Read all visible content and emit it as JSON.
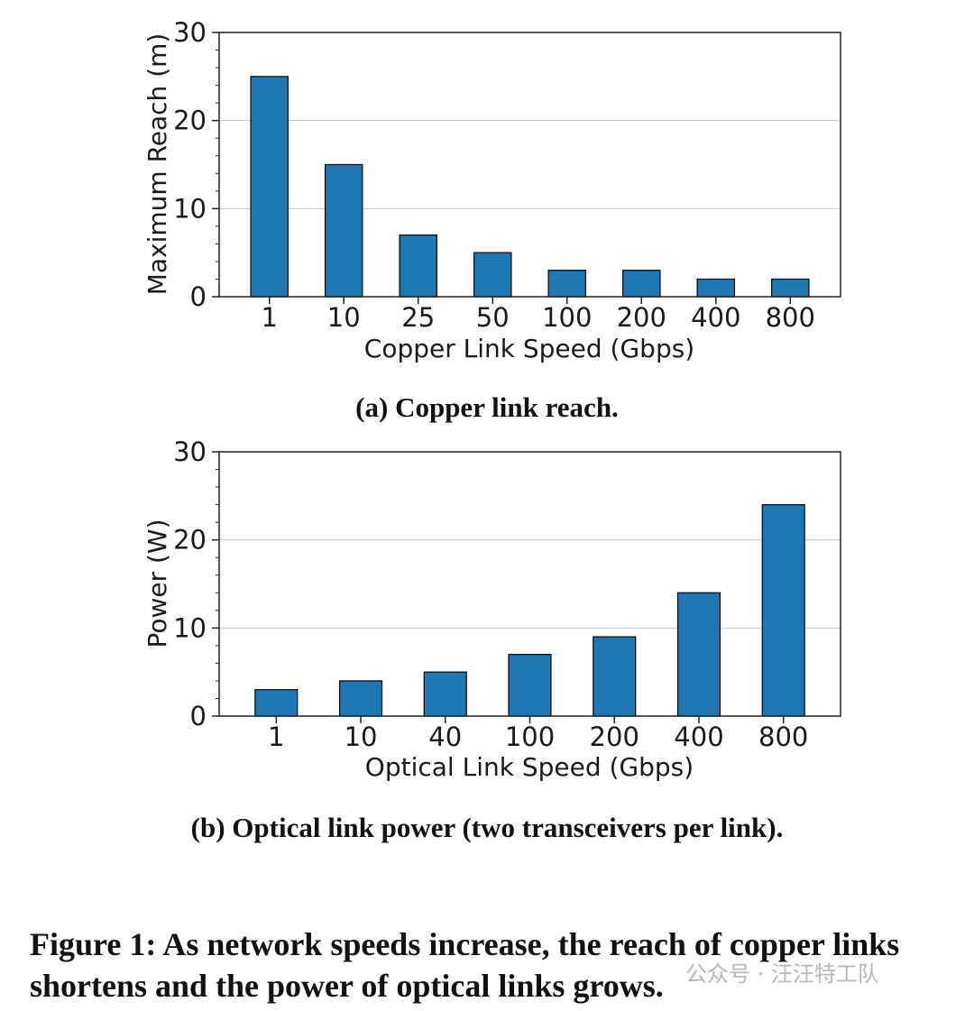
{
  "chart_data": [
    {
      "type": "bar",
      "categories": [
        "1",
        "10",
        "25",
        "50",
        "100",
        "200",
        "400",
        "800"
      ],
      "values": [
        25,
        15,
        7,
        5,
        3,
        3,
        2,
        2
      ],
      "xlabel": "Copper Link Speed (Gbps)",
      "ylabel": "Maximum Reach (m)",
      "ylim": [
        0,
        30
      ],
      "yticks": [
        "0",
        "10",
        "20",
        "30"
      ],
      "grid": "horizontal",
      "caption": "(a) Copper link reach.",
      "color": "#1f77b4"
    },
    {
      "type": "bar",
      "categories": [
        "1",
        "10",
        "40",
        "100",
        "200",
        "400",
        "800"
      ],
      "values": [
        3,
        4,
        5,
        7,
        9,
        14,
        24
      ],
      "xlabel": "Optical Link Speed (Gbps)",
      "ylabel": "Power (W)",
      "ylim": [
        0,
        30
      ],
      "yticks": [
        "0",
        "10",
        "20",
        "30"
      ],
      "grid": "horizontal",
      "caption": "(b) Optical link power (two transceivers per link).",
      "color": "#1f77b4"
    }
  ],
  "figure_caption": "Figure 1: As network speeds increase, the reach of copper links shortens and the power of optical links grows.",
  "watermark": "公众号 · 汪汪特工队"
}
